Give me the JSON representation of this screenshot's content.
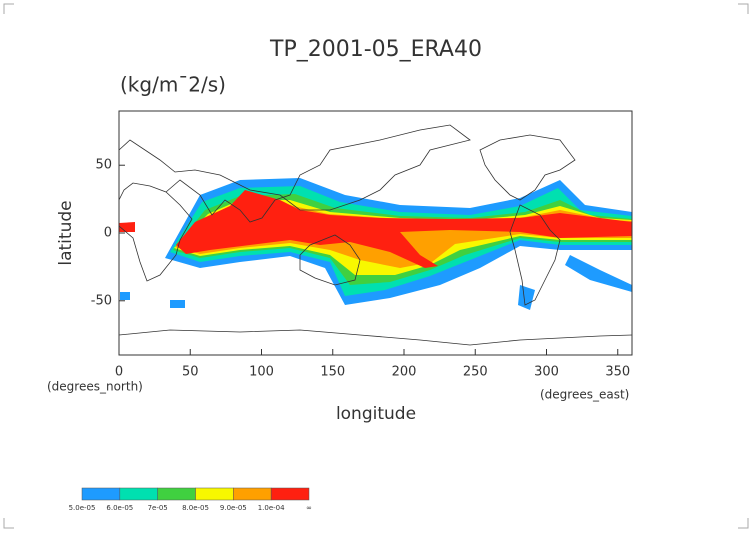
{
  "title": "TP_2001-05_ERA40",
  "subtitle": "(kg/m¯2/s)",
  "x_axis": {
    "label": "longitude",
    "unit": "(degrees_east)",
    "range": [
      0,
      360
    ],
    "ticks": [
      0,
      50,
      100,
      150,
      200,
      250,
      300,
      350
    ]
  },
  "y_axis": {
    "label": "latitude",
    "unit": "(degrees_north)",
    "range": [
      -90,
      90
    ],
    "ticks": [
      -50,
      0,
      50
    ]
  },
  "colorbar": {
    "labels": [
      "5.0e-05",
      "6.0e-05",
      "7e-05",
      "8.0e-05",
      "9.0e-05",
      "1.0e-04",
      "∞"
    ],
    "colors": [
      "#1e9bff",
      "#00e0b0",
      "#40d040",
      "#f8f800",
      "#ffa000",
      "#ff2010"
    ]
  }
}
